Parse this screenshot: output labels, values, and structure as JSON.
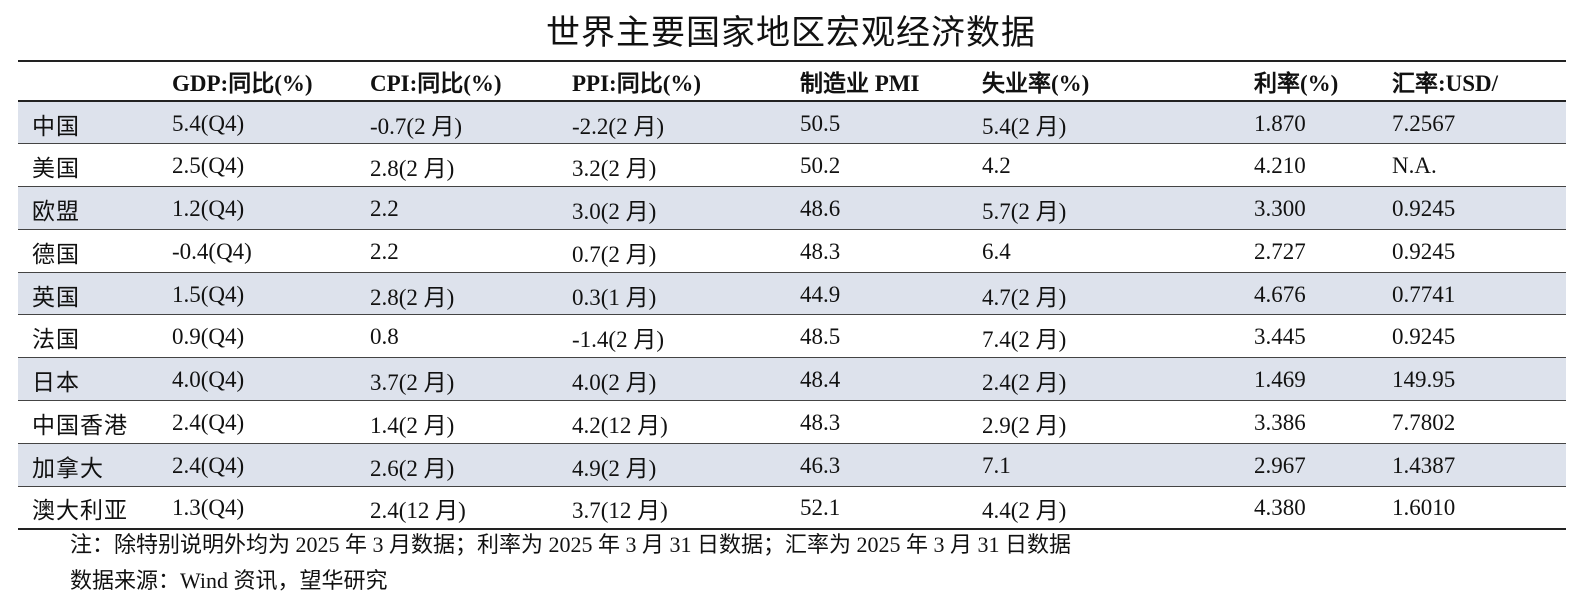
{
  "title": "世界主要国家地区宏观经济数据",
  "columns": [
    "",
    "GDP:同比(%)",
    "CPI:同比(%)",
    "PPI:同比(%)",
    "制造业 PMI",
    "失业率(%)",
    "利率(%)",
    "汇率:USD/"
  ],
  "rows": [
    {
      "region": "中国",
      "gdp": "5.4(Q4)",
      "cpi": "-0.7(2 月)",
      "ppi": "-2.2(2 月)",
      "pmi": "50.5",
      "unemployment": "5.4(2 月)",
      "rate": "1.870",
      "fx": "7.2567",
      "shaded": true
    },
    {
      "region": "美国",
      "gdp": "2.5(Q4)",
      "cpi": "2.8(2 月)",
      "ppi": "3.2(2 月)",
      "pmi": "50.2",
      "unemployment": "4.2",
      "rate": "4.210",
      "fx": "N.A.",
      "shaded": false
    },
    {
      "region": "欧盟",
      "gdp": "1.2(Q4)",
      "cpi": "2.2",
      "ppi": "3.0(2 月)",
      "pmi": "48.6",
      "unemployment": "5.7(2 月)",
      "rate": "3.300",
      "fx": "0.9245",
      "shaded": true
    },
    {
      "region": "德国",
      "gdp": "-0.4(Q4)",
      "cpi": "2.2",
      "ppi": "0.7(2 月)",
      "pmi": "48.3",
      "unemployment": "6.4",
      "rate": "2.727",
      "fx": "0.9245",
      "shaded": false
    },
    {
      "region": "英国",
      "gdp": "1.5(Q4)",
      "cpi": "2.8(2 月)",
      "ppi": "0.3(1 月)",
      "pmi": "44.9",
      "unemployment": "4.7(2 月)",
      "rate": "4.676",
      "fx": "0.7741",
      "shaded": true
    },
    {
      "region": "法国",
      "gdp": "0.9(Q4)",
      "cpi": "0.8",
      "ppi": "-1.4(2 月)",
      "pmi": "48.5",
      "unemployment": "7.4(2 月)",
      "rate": "3.445",
      "fx": "0.9245",
      "shaded": false
    },
    {
      "region": "日本",
      "gdp": "4.0(Q4)",
      "cpi": "3.7(2 月)",
      "ppi": "4.0(2 月)",
      "pmi": "48.4",
      "unemployment": "2.4(2 月)",
      "rate": "1.469",
      "fx": "149.95",
      "shaded": true
    },
    {
      "region": "中国香港",
      "gdp": "2.4(Q4)",
      "cpi": "1.4(2 月)",
      "ppi": "4.2(12 月)",
      "pmi": "48.3",
      "unemployment": "2.9(2 月)",
      "rate": "3.386",
      "fx": "7.7802",
      "shaded": false
    },
    {
      "region": "加拿大",
      "gdp": "2.4(Q4)",
      "cpi": "2.6(2 月)",
      "ppi": "4.9(2 月)",
      "pmi": "46.3",
      "unemployment": "7.1",
      "rate": "2.967",
      "fx": "1.4387",
      "shaded": true
    },
    {
      "region": "澳大利亚",
      "gdp": "1.3(Q4)",
      "cpi": "2.4(12 月)",
      "ppi": "3.7(12 月)",
      "pmi": "52.1",
      "unemployment": "4.4(2 月)",
      "rate": "4.380",
      "fx": "1.6010",
      "shaded": false
    }
  ],
  "notes": {
    "note": "注：除特别说明外均为 2025 年 3 月数据；利率为 2025 年 3 月 31 日数据；汇率为 2025 年 3 月 31 日数据",
    "source": "数据来源：Wind 资讯，望华研究"
  },
  "colors": {
    "shaded_row": "#dde2ec",
    "rule": "#222222"
  }
}
